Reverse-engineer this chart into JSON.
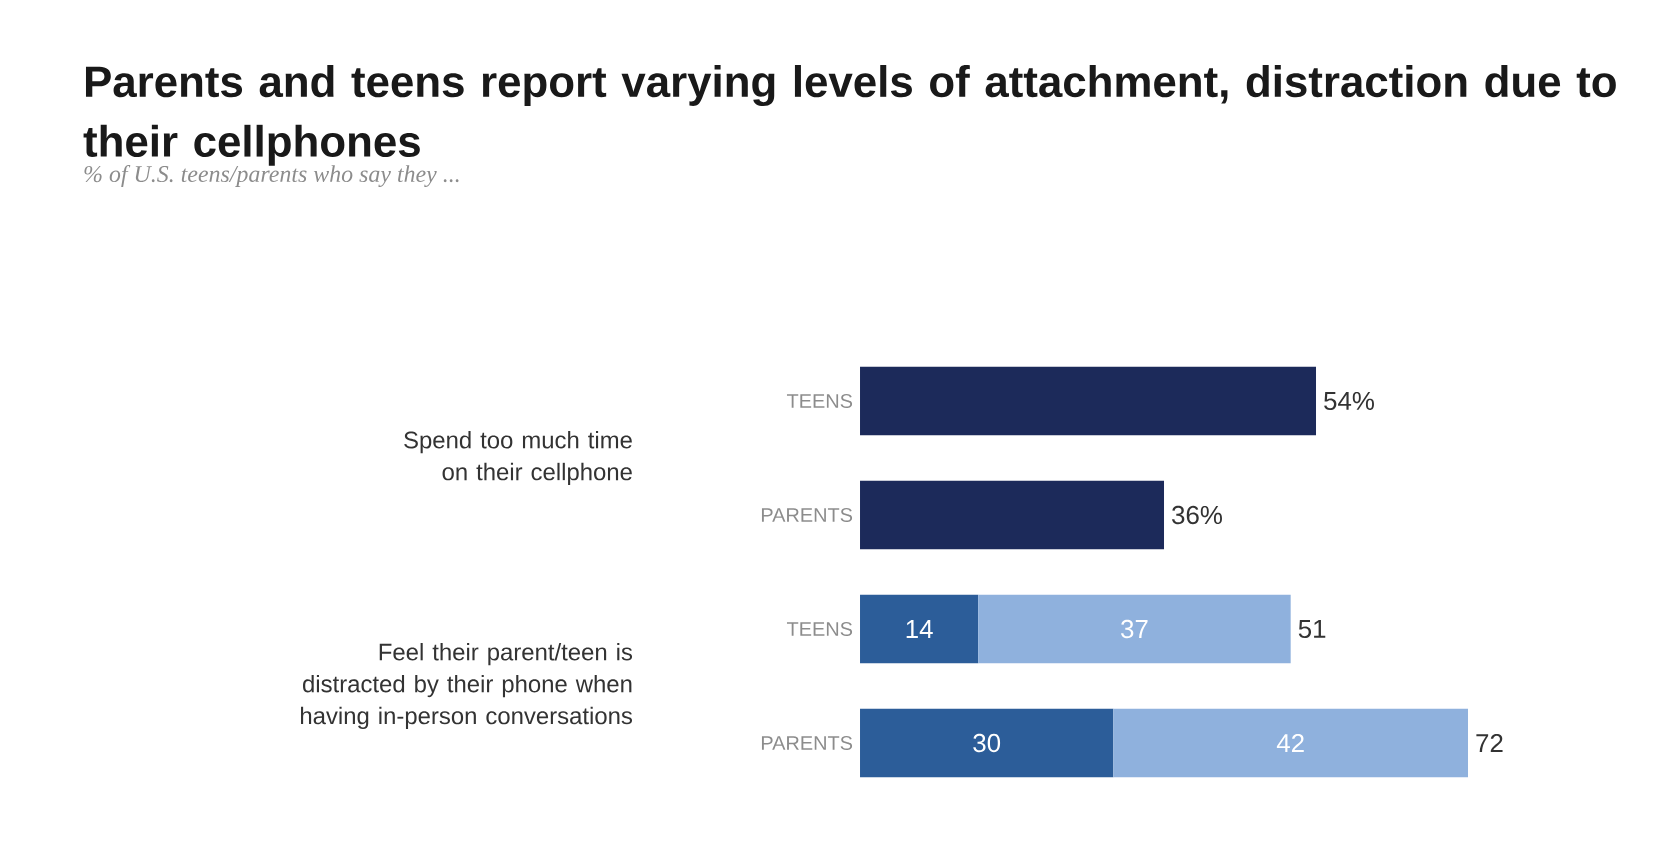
{
  "chart_data": {
    "type": "bar",
    "orientation": "horizontal",
    "stacked": true,
    "title": "Parents and teens report varying levels of attachment, distraction due to their cellphones",
    "subtitle": "% of U.S. teens/parents who say they ...",
    "categories": [
      "TEENS",
      "PARENTS",
      "TEENS",
      "PARENTS"
    ],
    "series": [
      {
        "colors": [
          "#1c2a5a",
          "#1c2a5a",
          "#2c5d99",
          "#2c5d99"
        ],
        "values": [
          54,
          36,
          14,
          30
        ],
        "value_labels": [
          null,
          null,
          "14",
          "30"
        ]
      },
      {
        "color": "#8fb1dd",
        "values": [
          null,
          null,
          37,
          42
        ],
        "value_labels": [
          null,
          null,
          "37",
          "42"
        ]
      }
    ],
    "totals": [
      "54%",
      "36%",
      "51",
      "72"
    ],
    "annotations": [
      "Spend too much time on their cellphone",
      "Feel their parent/teen is distracted by their phone when having in-person conversations"
    ]
  }
}
